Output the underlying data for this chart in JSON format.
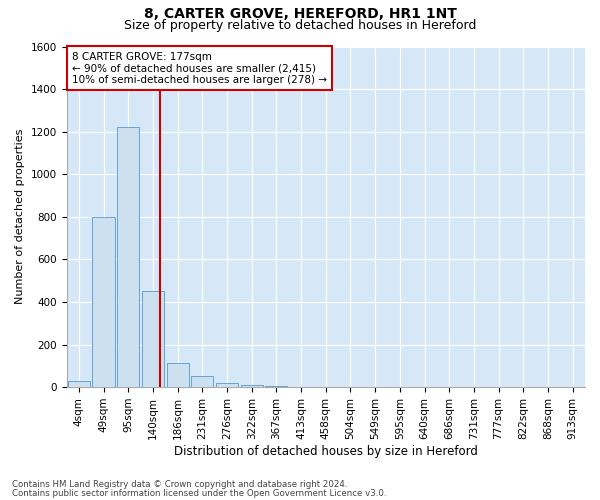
{
  "title1": "8, CARTER GROVE, HEREFORD, HR1 1NT",
  "title2": "Size of property relative to detached houses in Hereford",
  "xlabel": "Distribution of detached houses by size in Hereford",
  "ylabel": "Number of detached properties",
  "bin_labels": [
    "4sqm",
    "49sqm",
    "95sqm",
    "140sqm",
    "186sqm",
    "231sqm",
    "276sqm",
    "322sqm",
    "367sqm",
    "413sqm",
    "458sqm",
    "504sqm",
    "549sqm",
    "595sqm",
    "640sqm",
    "686sqm",
    "731sqm",
    "777sqm",
    "822sqm",
    "868sqm",
    "913sqm"
  ],
  "bar_heights": [
    30,
    800,
    1220,
    450,
    115,
    50,
    20,
    10,
    5,
    0,
    0,
    0,
    0,
    0,
    0,
    0,
    0,
    0,
    0,
    0,
    0
  ],
  "bar_color": "#cce0f0",
  "bar_edge_color": "#5599cc",
  "bar_width": 0.9,
  "ylim": [
    0,
    1600
  ],
  "yticks": [
    0,
    200,
    400,
    600,
    800,
    1000,
    1200,
    1400,
    1600
  ],
  "vline_color": "#cc0000",
  "annotation_line1": "8 CARTER GROVE: 177sqm",
  "annotation_line2": "← 90% of detached houses are smaller (2,415)",
  "annotation_line3": "10% of semi-detached houses are larger (278) →",
  "annotation_box_color": "#ffffff",
  "annotation_box_edge": "#cc0000",
  "footnote1": "Contains HM Land Registry data © Crown copyright and database right 2024.",
  "footnote2": "Contains public sector information licensed under the Open Government Licence v3.0.",
  "background_color": "#d6e8f7",
  "grid_color": "#ffffff",
  "fig_bg": "#ffffff",
  "title1_fontsize": 10,
  "title2_fontsize": 9,
  "tick_fontsize": 7.5,
  "ylabel_fontsize": 8,
  "xlabel_fontsize": 8.5,
  "annot_fontsize": 7.5
}
